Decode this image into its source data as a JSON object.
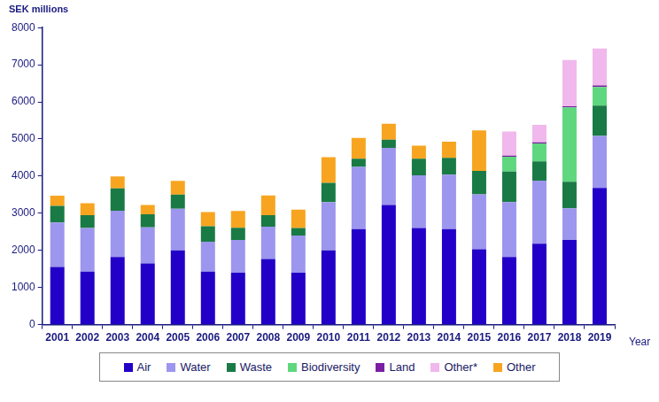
{
  "chart_data": {
    "type": "bar",
    "stacked": true,
    "grid": false,
    "legend": "bottom",
    "y_label": "SEK millions",
    "x_label": "Year",
    "categories": [
      "2001",
      "2002",
      "2003",
      "2004",
      "2005",
      "2006",
      "2007",
      "2008",
      "2009",
      "2010",
      "2011",
      "2012",
      "2013",
      "2014",
      "2015",
      "2016",
      "2017",
      "2018",
      "2019"
    ],
    "ylim": [
      0,
      8000
    ],
    "yticks": [
      0,
      1000,
      2000,
      3000,
      4000,
      5000,
      6000,
      7000,
      8000
    ],
    "series": [
      {
        "name": "Air",
        "color": "#2200c8",
        "values": [
          1550,
          1430,
          1820,
          1650,
          2000,
          1430,
          1400,
          1770,
          1400,
          2000,
          2570,
          3220,
          2600,
          2570,
          2030,
          1820,
          2180,
          2280,
          3680
        ]
      },
      {
        "name": "Water",
        "color": "#9c96ee",
        "values": [
          1200,
          1170,
          1250,
          970,
          1120,
          800,
          880,
          870,
          1000,
          1300,
          1680,
          1540,
          1420,
          1470,
          1480,
          1480,
          1700,
          850,
          1400
        ]
      },
      {
        "name": "Waste",
        "color": "#1a7a45",
        "values": [
          450,
          350,
          600,
          350,
          380,
          420,
          330,
          310,
          200,
          520,
          220,
          220,
          450,
          450,
          630,
          820,
          520,
          720,
          820
        ]
      },
      {
        "name": "Biodiversity",
        "color": "#5fd77f",
        "values": [
          null,
          null,
          null,
          null,
          null,
          null,
          null,
          null,
          null,
          null,
          null,
          null,
          null,
          null,
          null,
          400,
          480,
          2000,
          500
        ]
      },
      {
        "name": "Land",
        "color": "#7a1fa2",
        "values": [
          null,
          null,
          null,
          null,
          null,
          null,
          null,
          null,
          null,
          null,
          null,
          null,
          null,
          null,
          null,
          30,
          30,
          30,
          40
        ]
      },
      {
        "name": "Other*",
        "color": "#f0b8ec",
        "values": [
          null,
          null,
          null,
          null,
          null,
          null,
          null,
          null,
          null,
          null,
          null,
          null,
          null,
          null,
          null,
          650,
          470,
          1250,
          1000
        ]
      },
      {
        "name": "Other",
        "color": "#f7a520",
        "values": [
          270,
          320,
          320,
          250,
          370,
          380,
          450,
          530,
          500,
          690,
          560,
          430,
          350,
          440,
          1090,
          null,
          null,
          null,
          null
        ]
      }
    ]
  }
}
